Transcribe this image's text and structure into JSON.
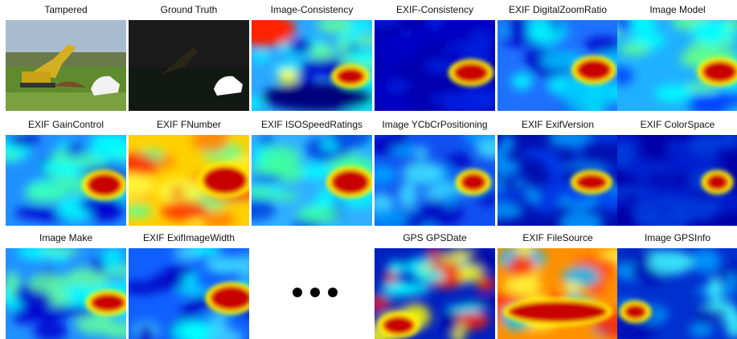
{
  "figure": {
    "panels": [
      {
        "label": "Tampered"
      },
      {
        "label": "Ground Truth"
      },
      {
        "label": "Image-Consistency"
      },
      {
        "label": "EXIF-Consistency"
      },
      {
        "label": "EXIF DigitalZoomRatio"
      },
      {
        "label": "Image Model"
      },
      {
        "label": "EXIF GainControl"
      },
      {
        "label": "EXIF FNumber"
      },
      {
        "label": "EXIF ISOSpeedRatings"
      },
      {
        "label": "Image YCbCrPositioning"
      },
      {
        "label": "EXIF ExifVersion"
      },
      {
        "label": "EXIF ColorSpace"
      },
      {
        "label": "Image Make"
      },
      {
        "label": "EXIF ExifImageWidth"
      },
      {
        "label": "GPS GPSDate"
      },
      {
        "label": "EXIF FileSource"
      },
      {
        "label": "Image GPSInfo"
      }
    ]
  }
}
